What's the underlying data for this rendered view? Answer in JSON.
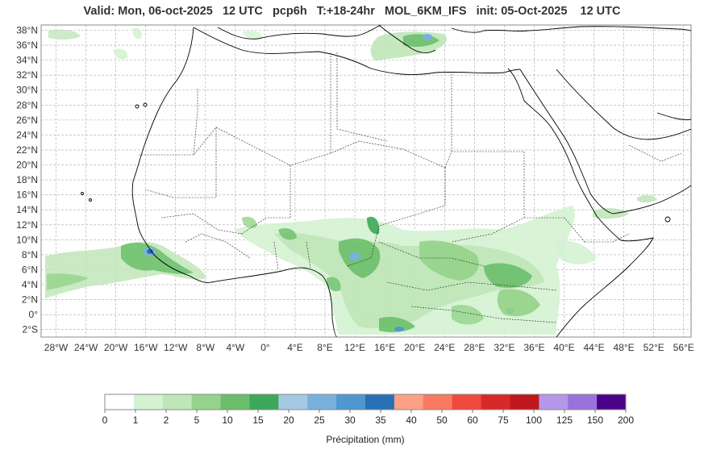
{
  "title": "Valid: Mon, 06-oct-2025   12 UTC   pcp6h   T:+18-24hr   MOL_6KM_IFS   init: 05-Oct-2025    12 UTC",
  "map": {
    "lat_ticks": [
      "38°N",
      "36°N",
      "34°N",
      "32°N",
      "30°N",
      "28°N",
      "26°N",
      "24°N",
      "22°N",
      "20°N",
      "18°N",
      "16°N",
      "14°N",
      "12°N",
      "10°N",
      "8°N",
      "6°N",
      "4°N",
      "2°N",
      "0°",
      "2°S"
    ],
    "lat_values": [
      38,
      36,
      34,
      32,
      30,
      28,
      26,
      24,
      22,
      20,
      18,
      16,
      14,
      12,
      10,
      8,
      6,
      4,
      2,
      0,
      -2
    ],
    "lon_ticks": [
      "28°W",
      "24°W",
      "20°W",
      "16°W",
      "12°W",
      "8°W",
      "4°W",
      "0°",
      "4°E",
      "8°E",
      "12°E",
      "16°E",
      "20°E",
      "24°E",
      "28°E",
      "32°E",
      "36°E",
      "40°E",
      "44°E",
      "48°E",
      "52°E",
      "56°E"
    ],
    "lon_values": [
      -28,
      -24,
      -20,
      -16,
      -12,
      -8,
      -4,
      0,
      4,
      8,
      12,
      16,
      20,
      24,
      28,
      32,
      36,
      40,
      44,
      48,
      52,
      56
    ],
    "lon_range": [
      -30,
      57
    ],
    "lat_range": [
      -3,
      38.7
    ],
    "grid": true
  },
  "colorbar": {
    "label": "Précipitation (mm)",
    "ticks": [
      "0",
      "1",
      "2",
      "5",
      "10",
      "15",
      "20",
      "25",
      "30",
      "35",
      "40",
      "50",
      "60",
      "75",
      "100",
      "125",
      "150",
      "200"
    ],
    "colors": [
      "#ffffff",
      "#d4f2d2",
      "#bfe6b8",
      "#95d38a",
      "#6bbf6c",
      "#3ea85a",
      "#a4cae3",
      "#78b2dc",
      "#4f97ce",
      "#2870b6",
      "#fca086",
      "#f87a60",
      "#ef4a3c",
      "#d72a28",
      "#c0171c",
      "#b497e8",
      "#9b72dc",
      "#4b0088"
    ]
  }
}
